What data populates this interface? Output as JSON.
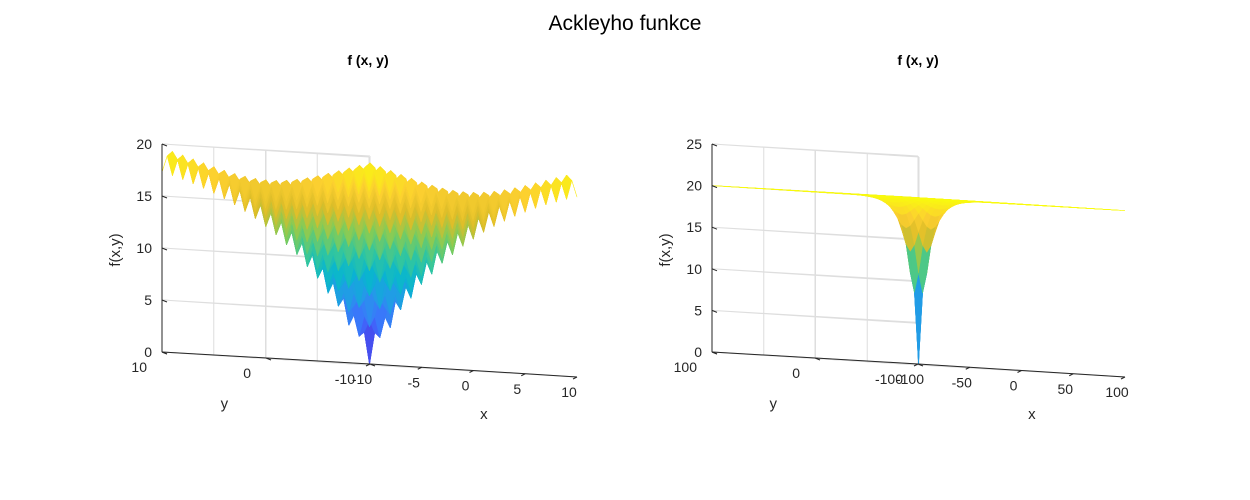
{
  "figure": {
    "title": "Ackleyho funkce"
  },
  "chart_data": [
    {
      "type": "surface",
      "title": "f (x, y)",
      "xlabel": "x",
      "ylabel": "y",
      "zlabel": "f(x,y)",
      "xlim": [
        -10,
        10
      ],
      "ylim": [
        -10,
        10
      ],
      "zlim": [
        0,
        20
      ],
      "xticks": [
        -10,
        -5,
        0,
        5,
        10
      ],
      "yticks": [
        -10,
        0,
        10
      ],
      "zticks": [
        0,
        5,
        10,
        15,
        20
      ],
      "function": "Ackley: -20*exp(-0.2*sqrt(0.5*(x^2+y^2))) - exp(0.5*(cos(2*pi*x)+cos(2*pi*y))) + e + 20",
      "grid_steps": 40,
      "colormap": "parula",
      "grid": true
    },
    {
      "type": "surface",
      "title": "f (x, y)",
      "xlabel": "x",
      "ylabel": "y",
      "zlabel": "f(x,y)",
      "xlim": [
        -100,
        100
      ],
      "ylim": [
        -100,
        100
      ],
      "zlim": [
        0,
        25
      ],
      "xticks": [
        -100,
        -50,
        0,
        50,
        100
      ],
      "yticks": [
        -100,
        0,
        100
      ],
      "zticks": [
        0,
        5,
        10,
        15,
        20,
        25
      ],
      "function": "Ackley: -20*exp(-0.2*sqrt(0.5*(x^2+y^2))) - exp(0.5*(cos(2*pi*x)+cos(2*pi*y))) + e + 20",
      "grid_steps": 50,
      "colormap": "parula",
      "grid": true
    }
  ]
}
